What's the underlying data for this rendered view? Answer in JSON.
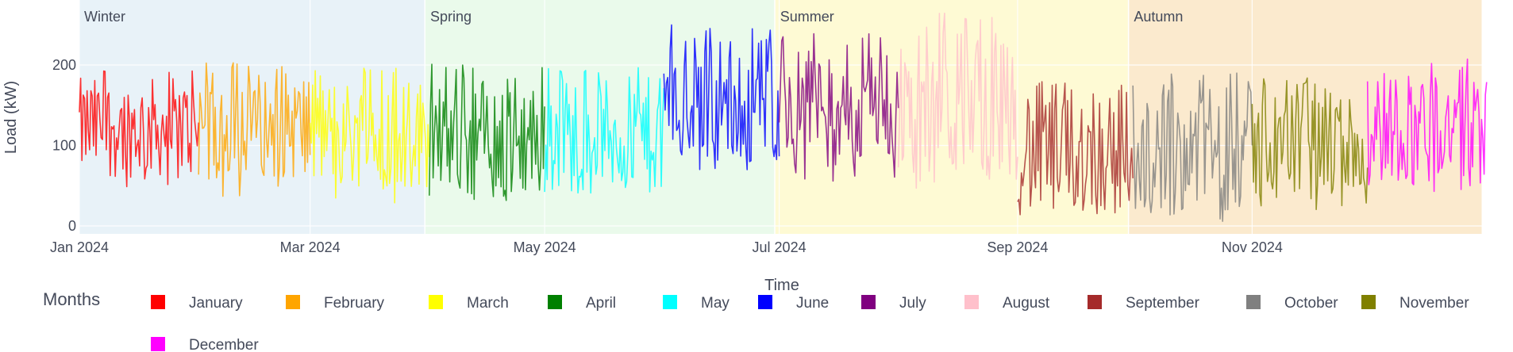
{
  "chart_data": {
    "type": "line",
    "title": "",
    "xlabel": "Time",
    "ylabel": "Load (kW)",
    "x_range": [
      "2024-01-01",
      "2024-12-31"
    ],
    "ylim": [
      0,
      270
    ],
    "y_ticks": [
      0,
      100,
      200
    ],
    "x_ticks": [
      {
        "date": "2024-01-01",
        "label": "Jan 2024"
      },
      {
        "date": "2024-03-01",
        "label": "Mar 2024"
      },
      {
        "date": "2024-05-01",
        "label": "May 2024"
      },
      {
        "date": "2024-07-01",
        "label": "Jul 2024"
      },
      {
        "date": "2024-09-01",
        "label": "Sep 2024"
      },
      {
        "date": "2024-11-01",
        "label": "Nov 2024"
      }
    ],
    "grid": true,
    "seasons": [
      {
        "label": "Winter",
        "start": "2024-01-01",
        "end": "2024-03-31",
        "color": "#d6e8f2"
      },
      {
        "label": "Spring",
        "start": "2024-03-31",
        "end": "2024-06-30",
        "color": "#d9f5da"
      },
      {
        "label": "Summer",
        "start": "2024-06-30",
        "end": "2024-09-30",
        "color": "#fdf6b0"
      },
      {
        "label": "Autumn",
        "start": "2024-09-30",
        "end": "2024-12-31",
        "color": "#f8d9a6"
      }
    ],
    "legend_title": "Months",
    "legend_placement": "bottom",
    "series": [
      {
        "name": "January",
        "color": "#ff0000",
        "start": "2024-01-01",
        "end": "2024-01-31",
        "mean": 122,
        "min": 38,
        "max": 195
      },
      {
        "name": "February",
        "color": "#ffa500",
        "start": "2024-02-01",
        "end": "2024-02-29",
        "mean": 125,
        "min": 36,
        "max": 204
      },
      {
        "name": "March",
        "color": "#ffff00",
        "start": "2024-03-01",
        "end": "2024-03-31",
        "mean": 115,
        "min": 25,
        "max": 196
      },
      {
        "name": "April",
        "color": "#008000",
        "start": "2024-04-01",
        "end": "2024-04-30",
        "mean": 110,
        "min": 27,
        "max": 202
      },
      {
        "name": "May",
        "color": "#00ffff",
        "start": "2024-05-01",
        "end": "2024-05-31",
        "mean": 112,
        "min": 40,
        "max": 198
      },
      {
        "name": "June",
        "color": "#0000ff",
        "start": "2024-06-01",
        "end": "2024-06-30",
        "mean": 158,
        "min": 65,
        "max": 250
      },
      {
        "name": "July",
        "color": "#800080",
        "start": "2024-07-01",
        "end": "2024-07-31",
        "mean": 150,
        "min": 55,
        "max": 240
      },
      {
        "name": "August",
        "color": "#ffc0cb",
        "start": "2024-08-01",
        "end": "2024-08-31",
        "mean": 152,
        "min": 45,
        "max": 265
      },
      {
        "name": "September",
        "color": "#a52a2a",
        "start": "2024-09-01",
        "end": "2024-09-30",
        "mean": 95,
        "min": 14,
        "max": 195
      },
      {
        "name": "October",
        "color": "#808080",
        "start": "2024-10-01",
        "end": "2024-10-31",
        "mean": 100,
        "min": 5,
        "max": 195
      },
      {
        "name": "November",
        "color": "#808000",
        "start": "2024-11-01",
        "end": "2024-11-30",
        "mean": 100,
        "min": 20,
        "max": 185
      },
      {
        "name": "December",
        "color": "#ff00ff",
        "start": "2024-12-01",
        "end": "2024-12-31",
        "mean": 125,
        "min": 40,
        "max": 210
      }
    ]
  }
}
